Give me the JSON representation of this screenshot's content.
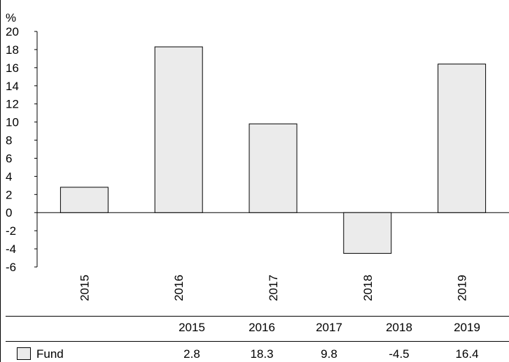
{
  "chart_data": {
    "type": "bar",
    "ylabel": "%",
    "categories": [
      "2015",
      "2016",
      "2017",
      "2018",
      "2019"
    ],
    "series": [
      {
        "name": "Fund",
        "values": [
          2.8,
          18.3,
          9.8,
          -4.5,
          16.4
        ]
      }
    ],
    "ylim": [
      -6,
      20
    ],
    "yticks": [
      "20",
      "18",
      "16",
      "14",
      "12",
      "10",
      "8",
      "6",
      "4",
      "2",
      "0",
      "-2",
      "-4",
      "-6"
    ],
    "grid": false,
    "bar_color": "#ebebeb",
    "legend_position": "table-bottom"
  },
  "table": {
    "headers": [
      "2015",
      "2016",
      "2017",
      "2018",
      "2019"
    ],
    "rows": [
      {
        "label": "Fund",
        "values": [
          "2.8",
          "18.3",
          "9.8",
          "-4.5",
          "16.4"
        ]
      }
    ]
  }
}
